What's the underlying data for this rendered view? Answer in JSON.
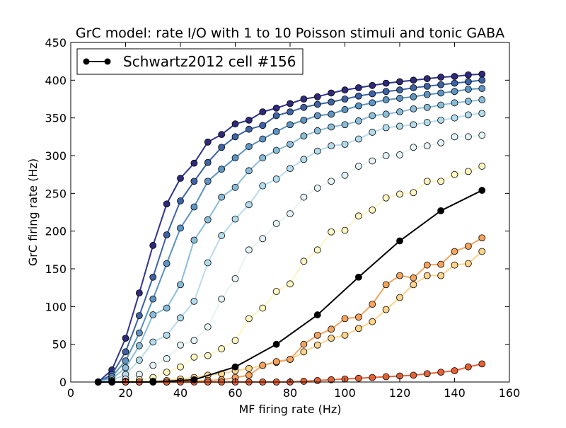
{
  "chart_data": {
    "type": "line",
    "title": "GrC model: rate I/O with 1 to 10 Poisson stimuli and tonic GABA",
    "xlabel": "MF firing rate (Hz)",
    "ylabel": "GrC firing rate (Hz)",
    "xlim": [
      0,
      160
    ],
    "ylim": [
      0,
      450
    ],
    "xticks": [
      0,
      20,
      40,
      60,
      80,
      100,
      120,
      140,
      160
    ],
    "yticks": [
      0,
      50,
      100,
      150,
      200,
      250,
      300,
      350,
      400,
      450
    ],
    "grid": false,
    "legend": {
      "position": "top-left",
      "entries": [
        "Schwartz2012 cell #156"
      ]
    },
    "x": [
      10,
      15,
      20,
      25,
      30,
      35,
      40,
      45,
      50,
      55,
      60,
      65,
      70,
      75,
      80,
      85,
      90,
      95,
      100,
      105,
      110,
      115,
      120,
      125,
      130,
      135,
      140,
      145,
      150
    ],
    "series": [
      {
        "line_color": "#2f348e",
        "marker_color": "#2e2a78",
        "values": [
          0,
          16,
          58,
          118,
          181,
          236,
          270,
          290,
          318,
          328,
          342,
          347,
          358,
          363,
          369,
          375,
          378,
          383,
          387,
          390,
          393,
          396,
          398,
          400,
          402,
          404,
          405,
          407,
          408
        ]
      },
      {
        "line_color": "#3c64a6",
        "marker_color": "#3e62a4",
        "values": [
          0,
          10,
          40,
          88,
          139,
          195,
          240,
          266,
          291,
          311,
          325,
          335,
          340,
          353,
          358,
          364,
          368,
          371,
          375,
          379,
          382,
          385,
          387,
          390,
          392,
          394,
          396,
          398,
          400
        ]
      },
      {
        "line_color": "#5b92c1",
        "marker_color": "#5d94c2",
        "values": [
          0,
          7,
          28,
          65,
          110,
          157,
          204,
          232,
          266,
          282,
          297,
          312,
          322,
          332,
          341,
          347,
          353,
          355,
          361,
          366,
          370,
          374,
          376,
          378,
          381,
          383,
          385,
          388,
          389
        ]
      },
      {
        "line_color": "#8bbdd9",
        "marker_color": "#8abdd9",
        "values": [
          0,
          4,
          19,
          48,
          89,
          98,
          129,
          188,
          215,
          245,
          258,
          280,
          297,
          307,
          315,
          326,
          333,
          338,
          341,
          346,
          353,
          355,
          358,
          362,
          364,
          367,
          370,
          372,
          374
        ]
      },
      {
        "line_color": "#b7dced",
        "marker_color": "#b3dcec",
        "values": [
          0,
          2,
          10,
          29,
          53,
          62,
          85,
          107,
          158,
          194,
          216,
          235,
          260,
          269,
          283,
          295,
          306,
          313,
          315,
          322,
          331,
          337,
          339,
          341,
          344,
          347,
          350,
          354,
          356
        ]
      },
      {
        "line_color": "#e7f4ee",
        "marker_color": "#e3f3f8",
        "values": [
          0,
          1,
          4,
          10,
          22,
          31,
          49,
          55,
          73,
          110,
          137,
          175,
          190,
          210,
          223,
          245,
          257,
          266,
          274,
          286,
          293,
          300,
          301,
          311,
          313,
          317,
          325,
          325,
          327
        ]
      },
      {
        "line_color": "#fdf5c3",
        "marker_color": "#fdf6c0",
        "values": [
          0,
          0,
          1,
          3,
          6,
          13,
          20,
          33,
          35,
          44,
          55,
          84,
          98,
          120,
          130,
          160,
          175,
          199,
          201,
          220,
          228,
          244,
          249,
          251,
          266,
          266,
          275,
          279,
          286
        ]
      },
      {
        "line_color": "#fbd48c",
        "marker_color": "#fed38a",
        "values": [
          0,
          0,
          0,
          0,
          1,
          2,
          4,
          6,
          9,
          11,
          15,
          18,
          22,
          26,
          30,
          40,
          49,
          58,
          62,
          71,
          80,
          96,
          112,
          129,
          141,
          141,
          155,
          157,
          173
        ]
      },
      {
        "line_color": "#f3a55f",
        "marker_color": "#f6a35e",
        "values": [
          0,
          0,
          0,
          0,
          0,
          0,
          1,
          1,
          2,
          3,
          6,
          9,
          22,
          27,
          30,
          50,
          62,
          70,
          84,
          86,
          103,
          129,
          141,
          138,
          155,
          156,
          173,
          180,
          191
        ]
      },
      {
        "line_color": "#e3653a",
        "marker_color": "#e26137",
        "values": [
          0,
          0,
          0,
          0,
          0,
          0,
          0,
          0,
          0,
          0,
          0,
          0,
          0,
          0,
          0,
          1,
          2,
          3,
          4,
          5,
          6,
          7,
          8,
          9,
          11,
          13,
          15,
          20,
          24
        ]
      },
      {
        "name": "Schwartz2012 cell #156",
        "line_color": "#000000",
        "marker_color": "#000000",
        "x": [
          10,
          15,
          30,
          45,
          60,
          75,
          90,
          105,
          120,
          135,
          150
        ],
        "values": [
          0,
          0,
          0,
          3,
          20,
          50,
          89,
          139,
          187,
          227,
          254
        ]
      }
    ]
  }
}
